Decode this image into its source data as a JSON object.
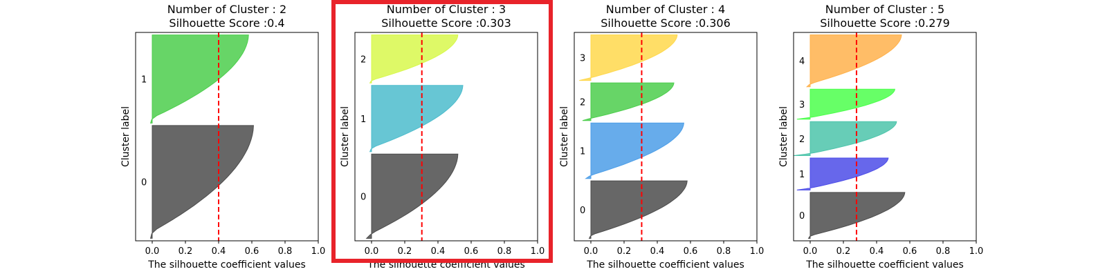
{
  "highlight": {
    "panel_index": 1,
    "color": "#e8232a"
  },
  "chart_data": [
    {
      "type": "area",
      "title_line1": "Number of Cluster : 2",
      "title_line2": "Silhouette Score :0.4",
      "xlabel": "The silhouette coefficient values",
      "ylabel": "Cluster label",
      "xlim": [
        -0.1,
        1.0
      ],
      "xticks": [
        "0.0",
        "0.2",
        "0.4",
        "0.6",
        "0.8",
        "1.0"
      ],
      "silhouette_avg": 0.4,
      "clusters": [
        {
          "label": "0",
          "color": "#4c4c4c",
          "size": 0.55,
          "max": 0.61,
          "min": -0.01
        },
        {
          "label": "1",
          "color": "#4cce4c",
          "size": 0.43,
          "max": 0.58,
          "min": -0.01
        }
      ]
    },
    {
      "type": "area",
      "title_line1": "Number of Cluster : 3",
      "title_line2": "Silhouette Score :0.303",
      "xlabel": "The silhouette coefficient values",
      "ylabel": "Cluster label",
      "xlim": [
        -0.1,
        1.0
      ],
      "xticks": [
        "0.0",
        "0.2",
        "0.4",
        "0.6",
        "0.8",
        "1.0"
      ],
      "silhouette_avg": 0.303,
      "clusters": [
        {
          "label": "0",
          "color": "#4c4c4c",
          "size": 0.42,
          "max": 0.52,
          "min": -0.03
        },
        {
          "label": "1",
          "color": "#4cbccc",
          "size": 0.33,
          "max": 0.55,
          "min": -0.01
        },
        {
          "label": "2",
          "color": "#d8f84c",
          "size": 0.24,
          "max": 0.52,
          "min": -0.01
        }
      ]
    },
    {
      "type": "area",
      "title_line1": "Number of Cluster : 4",
      "title_line2": "Silhouette Score :0.306",
      "xlabel": "The silhouette coefficient values",
      "ylabel": "Cluster label",
      "xlim": [
        -0.1,
        1.0
      ],
      "xticks": [
        "0.0",
        "0.2",
        "0.4",
        "0.6",
        "0.8",
        "1.0"
      ],
      "silhouette_avg": 0.306,
      "clusters": [
        {
          "label": "0",
          "color": "#4c4c4c",
          "size": 0.29,
          "max": 0.58,
          "min": -0.01
        },
        {
          "label": "1",
          "color": "#4c9ee8",
          "size": 0.28,
          "max": 0.56,
          "min": -0.03
        },
        {
          "label": "2",
          "color": "#4cce4c",
          "size": 0.19,
          "max": 0.5,
          "min": -0.05
        },
        {
          "label": "3",
          "color": "#ffd84c",
          "size": 0.23,
          "max": 0.52,
          "min": -0.07
        }
      ]
    },
    {
      "type": "area",
      "title_line1": "Number of Cluster : 5",
      "title_line2": "Silhouette Score :0.279",
      "xlabel": "The silhouette coefficient values",
      "ylabel": "Cluster label",
      "xlim": [
        -0.1,
        1.0
      ],
      "xticks": [
        "0.0",
        "0.2",
        "0.4",
        "0.6",
        "0.8",
        "1.0"
      ],
      "silhouette_avg": 0.279,
      "clusters": [
        {
          "label": "0",
          "color": "#4c4c4c",
          "size": 0.23,
          "max": 0.57,
          "min": -0.01
        },
        {
          "label": "1",
          "color": "#4c4ce8",
          "size": 0.16,
          "max": 0.47,
          "min": -0.08
        },
        {
          "label": "2",
          "color": "#4cc4aa",
          "size": 0.17,
          "max": 0.52,
          "min": -0.1
        },
        {
          "label": "3",
          "color": "#4cff4c",
          "size": 0.15,
          "max": 0.51,
          "min": -0.08
        },
        {
          "label": "4",
          "color": "#ffb24c",
          "size": 0.26,
          "max": 0.55,
          "min": -0.02
        }
      ]
    }
  ]
}
